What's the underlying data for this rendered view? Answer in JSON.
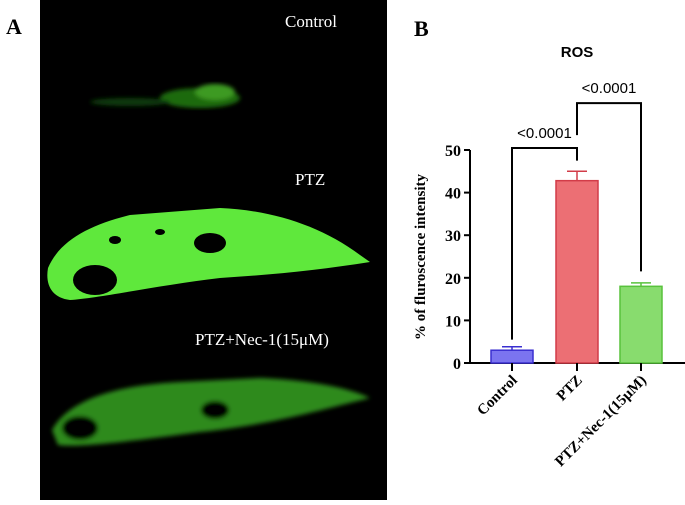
{
  "panel_a": {
    "letter": "A",
    "labels": [
      "Control",
      "PTZ",
      "PTZ+Nec-1(15μM)"
    ]
  },
  "panel_b": {
    "letter": "B"
  },
  "chart_data": {
    "type": "bar",
    "title": "ROS",
    "xlabel": "",
    "ylabel": "% of fluroscence intensity",
    "categories": [
      "Control",
      "PTZ",
      "PTZ+Nec-1(15μM)"
    ],
    "values": [
      3.0,
      42.8,
      18.0
    ],
    "error_upper": [
      3.8,
      45.0,
      18.8
    ],
    "colors": [
      "#7b74f0",
      "#ec6f74",
      "#88dc6e"
    ],
    "edge_colors": [
      "#3a2fd0",
      "#d23c48",
      "#58c23c"
    ],
    "ylim": [
      0,
      50
    ],
    "yticks": [
      0,
      10,
      20,
      30,
      40,
      50
    ],
    "comparisons": [
      {
        "groups": [
          "Control",
          "PTZ"
        ],
        "label": "<0.0001"
      },
      {
        "groups": [
          "PTZ",
          "PTZ+Nec-1(15μM)"
        ],
        "label": "<0.0001"
      }
    ]
  }
}
